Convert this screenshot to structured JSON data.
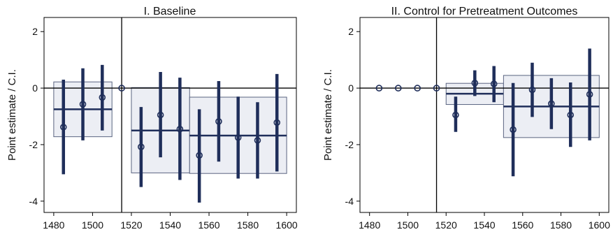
{
  "chart_data": [
    {
      "type": "scatter",
      "title": "I. Baseline",
      "xlabel": "",
      "ylabel": "Point estimate / C.I.",
      "xlim": [
        1475,
        1605
      ],
      "ylim": [
        -4.4,
        2.5
      ],
      "xticks": [
        1480,
        1500,
        1520,
        1540,
        1560,
        1580,
        1600
      ],
      "yticks": [
        2,
        0,
        -2,
        -4
      ],
      "grid": false,
      "reference_line_x": 1515,
      "reference_line_y": 0,
      "points": [
        {
          "x": 1485,
          "y": -1.38,
          "lo": -3.05,
          "hi": 0.3
        },
        {
          "x": 1495,
          "y": -0.57,
          "lo": -1.85,
          "hi": 0.7
        },
        {
          "x": 1505,
          "y": -0.33,
          "lo": -1.5,
          "hi": 0.82
        },
        {
          "x": 1515,
          "y": 0.0,
          "lo": 0.0,
          "hi": 0.0
        },
        {
          "x": 1525,
          "y": -2.08,
          "lo": -3.5,
          "hi": -0.67
        },
        {
          "x": 1535,
          "y": -0.95,
          "lo": -2.45,
          "hi": 0.57
        },
        {
          "x": 1545,
          "y": -1.45,
          "lo": -3.25,
          "hi": 0.37
        },
        {
          "x": 1555,
          "y": -2.38,
          "lo": -4.05,
          "hi": -0.75
        },
        {
          "x": 1565,
          "y": -1.18,
          "lo": -2.6,
          "hi": 0.25
        },
        {
          "x": 1575,
          "y": -1.75,
          "lo": -3.2,
          "hi": -0.3
        },
        {
          "x": 1585,
          "y": -1.85,
          "lo": -3.2,
          "hi": -0.5
        },
        {
          "x": 1595,
          "y": -1.22,
          "lo": -2.95,
          "hi": 0.5
        }
      ],
      "period_boxes": [
        {
          "x_start": 1480,
          "x_end": 1510,
          "mean": -0.75,
          "lo": -1.72,
          "hi": 0.22
        },
        {
          "x_start": 1520,
          "x_end": 1550,
          "mean": -1.5,
          "lo": -3.0,
          "hi": 0.02
        },
        {
          "x_start": 1550,
          "x_end": 1600,
          "mean": -1.68,
          "lo": -3.02,
          "hi": -0.32
        }
      ],
      "colors": {
        "series": "#1f2e5a",
        "box_fill": "#eceef4",
        "box_stroke": "#5a6480"
      }
    },
    {
      "type": "scatter",
      "title": "II. Control for Pretreatment Outcomes",
      "xlabel": "",
      "ylabel": "Point estimate / C.I.",
      "xlim": [
        1475,
        1605
      ],
      "ylim": [
        -4.4,
        2.5
      ],
      "xticks": [
        1480,
        1500,
        1520,
        1540,
        1560,
        1580,
        1600
      ],
      "yticks": [
        2,
        0,
        -2,
        -4
      ],
      "grid": false,
      "reference_line_x": 1515,
      "reference_line_y": 0,
      "points": [
        {
          "x": 1485,
          "y": 0.0,
          "lo": 0.0,
          "hi": 0.0
        },
        {
          "x": 1495,
          "y": 0.0,
          "lo": 0.0,
          "hi": 0.0
        },
        {
          "x": 1505,
          "y": 0.0,
          "lo": 0.0,
          "hi": 0.0
        },
        {
          "x": 1515,
          "y": 0.0,
          "lo": 0.0,
          "hi": 0.0
        },
        {
          "x": 1525,
          "y": -0.95,
          "lo": -1.55,
          "hi": -0.3
        },
        {
          "x": 1535,
          "y": 0.18,
          "lo": -0.28,
          "hi": 0.63
        },
        {
          "x": 1545,
          "y": 0.15,
          "lo": -0.5,
          "hi": 0.78
        },
        {
          "x": 1555,
          "y": -1.47,
          "lo": -3.12,
          "hi": 0.18
        },
        {
          "x": 1565,
          "y": -0.06,
          "lo": -1.02,
          "hi": 0.9
        },
        {
          "x": 1575,
          "y": -0.55,
          "lo": -1.45,
          "hi": 0.35
        },
        {
          "x": 1585,
          "y": -0.95,
          "lo": -2.08,
          "hi": 0.2
        },
        {
          "x": 1595,
          "y": -0.22,
          "lo": -1.85,
          "hi": 1.4
        }
      ],
      "period_boxes": [
        {
          "x_start": 1520,
          "x_end": 1550,
          "mean": -0.2,
          "lo": -0.58,
          "hi": 0.17
        },
        {
          "x_start": 1550,
          "x_end": 1600,
          "mean": -0.65,
          "lo": -1.75,
          "hi": 0.45
        }
      ],
      "colors": {
        "series": "#1f2e5a",
        "box_fill": "#eceef4",
        "box_stroke": "#5a6480"
      }
    }
  ]
}
